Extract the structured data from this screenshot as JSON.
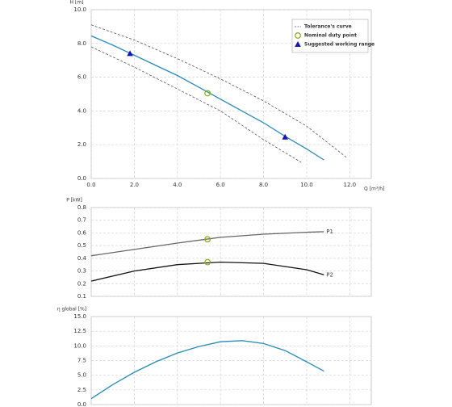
{
  "chart_data": [
    {
      "type": "line",
      "y_label": "H [m]",
      "x_label": "Q [m³/h]",
      "xlim": [
        0,
        13
      ],
      "ylim": [
        0,
        10
      ],
      "xticks": [
        {
          "value": 0,
          "label": "0.0"
        },
        {
          "value": 2,
          "label": "2.0"
        },
        {
          "value": 4,
          "label": "4.0"
        },
        {
          "value": 6,
          "label": "6.0"
        },
        {
          "value": 8,
          "label": "8.0"
        },
        {
          "value": 10,
          "label": "10.0"
        },
        {
          "value": 12,
          "label": "12.0"
        }
      ],
      "yticks": [
        {
          "value": 0,
          "label": "0.0"
        },
        {
          "value": 2,
          "label": "2.0"
        },
        {
          "value": 4,
          "label": "4.0"
        },
        {
          "value": 6,
          "label": "6.0"
        },
        {
          "value": 8,
          "label": "8.0"
        },
        {
          "value": 10,
          "label": "10.0"
        }
      ],
      "grid": true,
      "legend": "upper right",
      "series": [
        {
          "color": "#2a8ab8",
          "x": [
            0,
            1,
            2,
            3,
            4,
            5,
            6,
            7,
            8,
            9,
            10,
            10.8
          ],
          "values": [
            8.45,
            7.9,
            7.3,
            6.7,
            6.1,
            5.4,
            4.7,
            4.0,
            3.3,
            2.5,
            1.75,
            1.1
          ]
        },
        {
          "name": "Tolerance's curve",
          "style": "dashed",
          "color": "#555555",
          "x": [
            0,
            2,
            4,
            6,
            8,
            10,
            11.9
          ],
          "values": [
            9.1,
            8.2,
            7.1,
            5.9,
            4.6,
            3.1,
            1.2
          ]
        },
        {
          "style": "dashed",
          "color": "#555555",
          "x": [
            0,
            2,
            4,
            6,
            8,
            9.75
          ],
          "values": [
            7.8,
            6.6,
            5.3,
            4.0,
            2.3,
            0.95
          ]
        },
        {
          "name": "Nominal duty point",
          "marker": "circle",
          "color": "#8ab020",
          "x": [
            5.4
          ],
          "values": [
            5.05
          ]
        },
        {
          "name": "Suggested working range",
          "marker": "triangle",
          "color": "#1414b4",
          "x": [
            1.8,
            9.0
          ],
          "values": [
            7.4,
            2.45
          ]
        }
      ]
    },
    {
      "type": "line",
      "y_label": "P [kW]",
      "xlim": [
        0,
        13
      ],
      "ylim": [
        0.1,
        0.8
      ],
      "yticks": [
        0.1,
        0.2,
        0.3,
        0.4,
        0.5,
        0.6,
        0.7,
        0.8
      ],
      "grid": true,
      "series_labels": "end",
      "series": [
        {
          "name": "P1",
          "color": "#666666",
          "x": [
            0,
            2,
            4,
            6,
            8,
            10,
            10.8
          ],
          "values": [
            0.42,
            0.47,
            0.52,
            0.565,
            0.59,
            0.605,
            0.61
          ]
        },
        {
          "name": "P2",
          "color": "#111111",
          "x": [
            0,
            2,
            4,
            6,
            8,
            10,
            10.8
          ],
          "values": [
            0.22,
            0.3,
            0.35,
            0.37,
            0.36,
            0.31,
            0.27
          ]
        },
        {
          "marker": "circle",
          "color": "#8ab020",
          "x": [
            5.4,
            5.4
          ],
          "values": [
            0.55,
            0.37
          ]
        }
      ]
    },
    {
      "type": "line",
      "y_label": "η global [%]",
      "xlim": [
        0,
        13
      ],
      "ylim": [
        0,
        15
      ],
      "yticks": [
        {
          "value": 0,
          "label": "0.0"
        },
        2.5,
        {
          "value": 5,
          "label": "5.0"
        },
        7.5,
        {
          "value": 10,
          "label": "10.0"
        },
        12.5,
        {
          "value": 15,
          "label": "15.0"
        }
      ],
      "grid": true,
      "series": [
        {
          "color": "#2a8ab8",
          "x": [
            0,
            1,
            2,
            3,
            4,
            5,
            6,
            7,
            8,
            9,
            10,
            10.8
          ],
          "values": [
            1,
            3.4,
            5.5,
            7.3,
            8.8,
            9.9,
            10.7,
            10.9,
            10.4,
            9.2,
            7.3,
            5.7
          ]
        }
      ]
    }
  ]
}
